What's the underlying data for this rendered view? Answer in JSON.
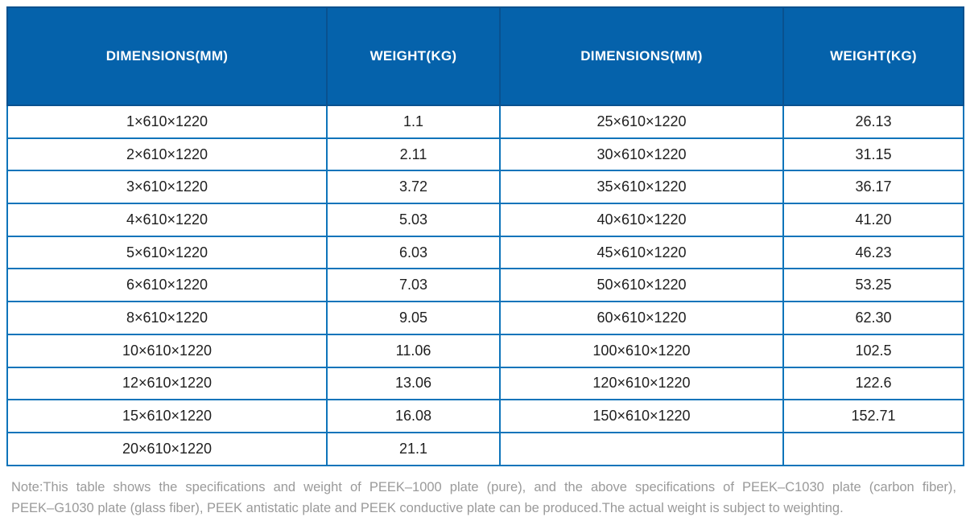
{
  "colors": {
    "header_bg": "#0562ab",
    "header_text": "#ffffff",
    "header_divider": "#09518f",
    "grid_border": "#0e74ba",
    "cell_text": "#1f1f1f",
    "note_text": "#9a9a9a",
    "page_bg": "#ffffff"
  },
  "table": {
    "columns": [
      {
        "label": "DIMENSIONS(MM)"
      },
      {
        "label": "WEIGHT(KG)"
      },
      {
        "label": "DIMENSIONS(MM)"
      },
      {
        "label": "WEIGHT(KG)"
      }
    ],
    "rows": [
      [
        "1×610×1220",
        "1.1",
        "25×610×1220",
        "26.13"
      ],
      [
        "2×610×1220",
        "2.11",
        "30×610×1220",
        "31.15"
      ],
      [
        "3×610×1220",
        "3.72",
        "35×610×1220",
        "36.17"
      ],
      [
        "4×610×1220",
        "5.03",
        "40×610×1220",
        "41.20"
      ],
      [
        "5×610×1220",
        "6.03",
        "45×610×1220",
        "46.23"
      ],
      [
        "6×610×1220",
        "7.03",
        "50×610×1220",
        "53.25"
      ],
      [
        "8×610×1220",
        "9.05",
        "60×610×1220",
        "62.30"
      ],
      [
        "10×610×1220",
        "11.06",
        "100×610×1220",
        "102.5"
      ],
      [
        "12×610×1220",
        "13.06",
        "120×610×1220",
        "122.6"
      ],
      [
        "15×610×1220",
        "16.08",
        "150×610×1220",
        "152.71"
      ],
      [
        "20×610×1220",
        "21.1",
        "",
        ""
      ]
    ]
  },
  "note": {
    "line1": "Note:This table shows the specifications and weight of PEEK–1000 plate (pure), and the above specifications of PEEK–C1030 plate (carbon fiber),",
    "line2": "PEEK–G1030 plate (glass fiber), PEEK antistatic plate and PEEK conductive plate can be produced.The actual weight is subject to weighting."
  }
}
